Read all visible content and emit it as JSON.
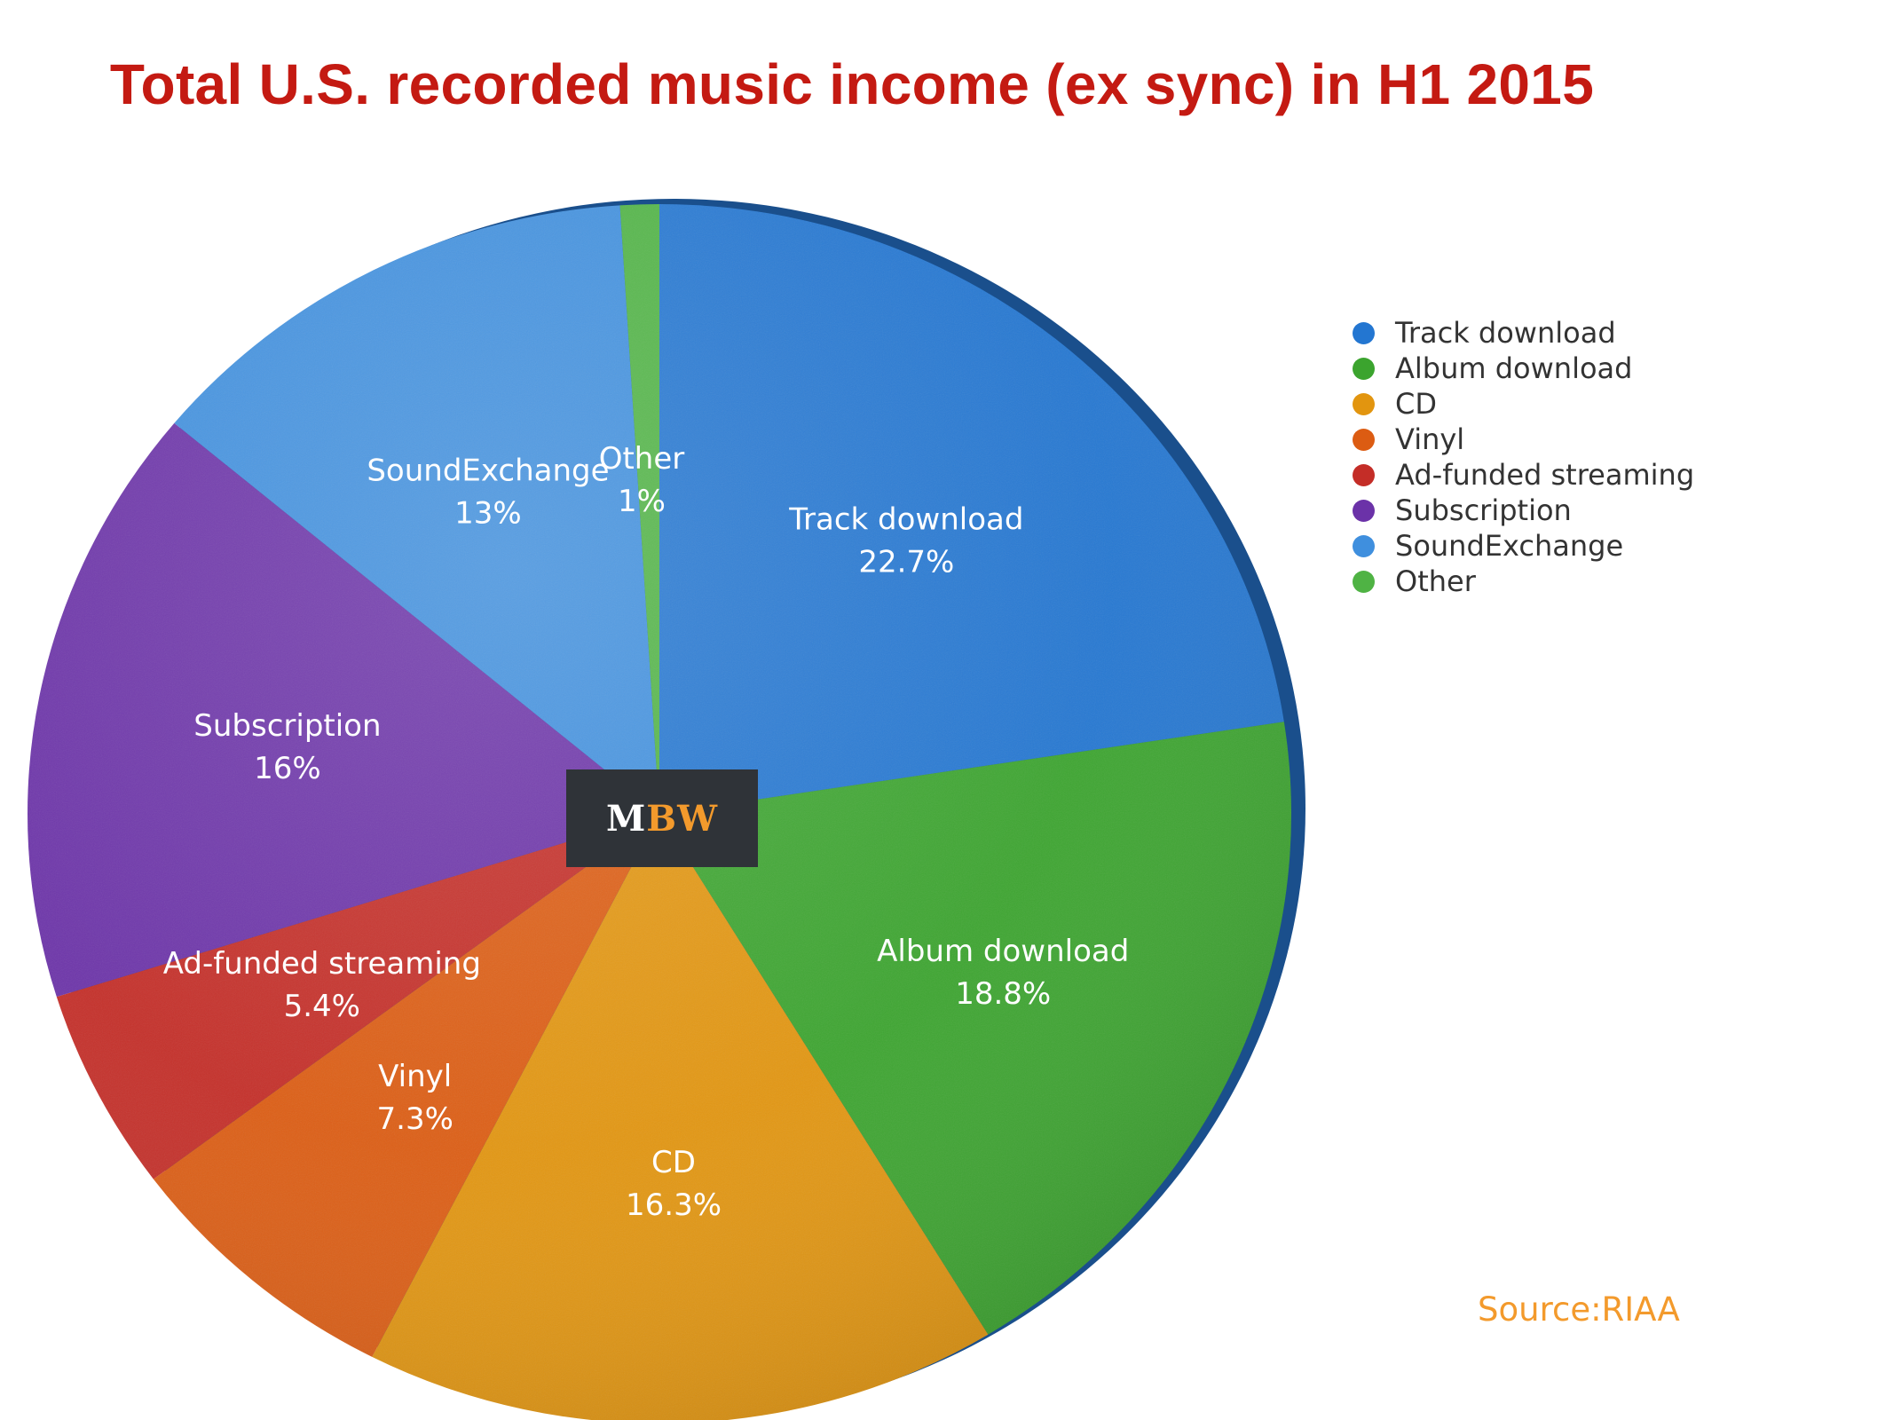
{
  "title": "Total U.S. recorded music income (ex sync) in H1 2015",
  "source": "Source:RIAA",
  "logo": {
    "m": "M",
    "bw": "BW"
  },
  "chart_data": {
    "type": "pie",
    "title": "Total U.S. recorded music income (ex sync) in H1 2015",
    "legend_position": "right",
    "slices": [
      {
        "label": "Track download",
        "value": 22.7,
        "display": "22.7%",
        "color": "#2376d1"
      },
      {
        "label": "Album download",
        "value": 18.8,
        "display": "18.8%",
        "color": "#3ba42e"
      },
      {
        "label": "CD",
        "value": 16.3,
        "display": "16.3%",
        "color": "#e2950f"
      },
      {
        "label": "Vinyl",
        "value": 7.3,
        "display": "7.3%",
        "color": "#dc5c12"
      },
      {
        "label": "Ad-funded streaming",
        "value": 5.4,
        "display": "5.4%",
        "color": "#c42d27"
      },
      {
        "label": "Subscription",
        "value": 16,
        "display": "16%",
        "color": "#6b32a8"
      },
      {
        "label": "SoundExchange",
        "value": 13,
        "display": "13%",
        "color": "#3f8fde"
      },
      {
        "label": "Other",
        "value": 1,
        "display": "1%",
        "color": "#4fb344"
      }
    ]
  }
}
